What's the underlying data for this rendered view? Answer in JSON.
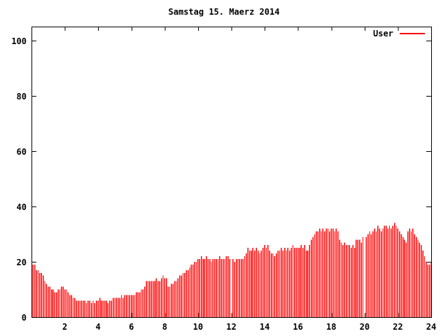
{
  "chart_data": {
    "type": "bar",
    "style": "impulses",
    "title": "Samstag 15. Maerz 2014",
    "xlabel": "",
    "ylabel": "",
    "xlim": [
      0,
      24
    ],
    "ylim": [
      0,
      105
    ],
    "xticks": [
      "2",
      "4",
      "6",
      "8",
      "10",
      "12",
      "14",
      "16",
      "18",
      "20",
      "22",
      "24"
    ],
    "xtick_values": [
      2,
      4,
      6,
      8,
      10,
      12,
      14,
      16,
      18,
      20,
      22,
      24
    ],
    "yticks": [
      "0",
      "20",
      "40",
      "60",
      "80",
      "100"
    ],
    "ytick_values": [
      0,
      20,
      40,
      60,
      80,
      100
    ],
    "grid": false,
    "legend_position": "top-right",
    "axis_color": "#000000",
    "background_color": "#ffffff",
    "series": [
      {
        "name": "User",
        "color": "#ff0000",
        "x_start": 0.1,
        "x_step": 0.1,
        "values": [
          19,
          19,
          17,
          17,
          16,
          16,
          15,
          13,
          12,
          11,
          11,
          10,
          10,
          9,
          9,
          10,
          10,
          11,
          11,
          10,
          10,
          9,
          8,
          8,
          7,
          7,
          6,
          6,
          6,
          6,
          6,
          6,
          5,
          6,
          6,
          5,
          6,
          5,
          6,
          6,
          7,
          6,
          6,
          6,
          6,
          5,
          6,
          6,
          7,
          7,
          7,
          7,
          7,
          8,
          7,
          8,
          8,
          8,
          8,
          8,
          8,
          8,
          9,
          9,
          9,
          10,
          10,
          11,
          13,
          13,
          13,
          13,
          13,
          13,
          14,
          13,
          13,
          14,
          15,
          14,
          14,
          11,
          11,
          12,
          12,
          13,
          13,
          14,
          15,
          15,
          16,
          16,
          17,
          17,
          18,
          19,
          19,
          20,
          20,
          21,
          21,
          22,
          21,
          21,
          22,
          21,
          21,
          20,
          21,
          21,
          21,
          21,
          22,
          21,
          21,
          21,
          22,
          22,
          21,
          0,
          21,
          20,
          21,
          21,
          21,
          21,
          21,
          22,
          23,
          25,
          24,
          24,
          25,
          24,
          25,
          24,
          23,
          24,
          25,
          26,
          25,
          26,
          24,
          23,
          23,
          22,
          23,
          24,
          24,
          25,
          24,
          25,
          24,
          25,
          24,
          25,
          26,
          25,
          25,
          25,
          25,
          26,
          25,
          26,
          24,
          24,
          26,
          28,
          29,
          30,
          31,
          31,
          32,
          31,
          32,
          31,
          32,
          32,
          31,
          32,
          32,
          31,
          32,
          31,
          28,
          27,
          26,
          27,
          26,
          26,
          26,
          25,
          26,
          25,
          28,
          28,
          28,
          27,
          29,
          0,
          29,
          30,
          31,
          30,
          31,
          32,
          31,
          33,
          32,
          31,
          32,
          33,
          33,
          32,
          33,
          32,
          33,
          34,
          33,
          32,
          31,
          30,
          29,
          28,
          27,
          31,
          32,
          31,
          32,
          30,
          29,
          28,
          27,
          26,
          24,
          22,
          20,
          19,
          19,
          20
        ]
      }
    ]
  }
}
